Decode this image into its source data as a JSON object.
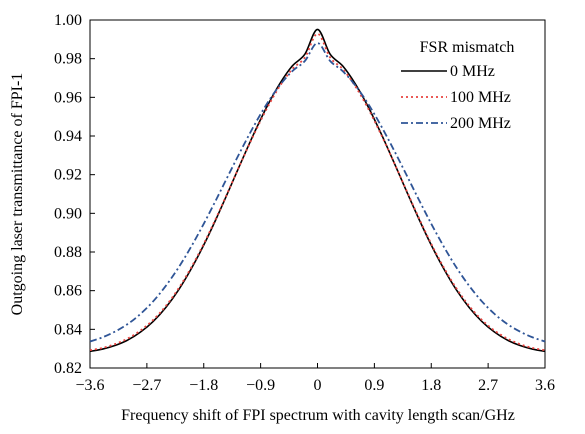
{
  "chart_data": {
    "type": "line",
    "title": "",
    "xlabel": "Frequency shift of FPI spectrum with cavity length scan/GHz",
    "ylabel": "Outgoing laser transmittance of FPI-1",
    "xlim": [
      -3.6,
      3.6
    ],
    "ylim": [
      0.82,
      1.0
    ],
    "x_ticks": [
      -3.6,
      -2.7,
      -1.8,
      -0.9,
      0,
      0.9,
      1.8,
      2.7,
      3.6
    ],
    "x_tick_labels": [
      "−3.6",
      "−2.7",
      "−1.8",
      "−0.9",
      "0",
      "0.9",
      "1.8",
      "2.7",
      "3.6"
    ],
    "y_ticks": [
      0.82,
      0.84,
      0.86,
      0.88,
      0.9,
      0.92,
      0.94,
      0.96,
      0.98,
      1.0
    ],
    "y_tick_labels": [
      "0.82",
      "0.84",
      "0.86",
      "0.88",
      "0.90",
      "0.92",
      "0.94",
      "0.96",
      "0.98",
      "1.00"
    ],
    "grid": false,
    "legend": {
      "title": "FSR mismatch",
      "placement": "top-right"
    },
    "x": [
      -3.6,
      -3.4,
      -3.2,
      -3.0,
      -2.8,
      -2.6,
      -2.4,
      -2.2,
      -2.0,
      -1.8,
      -1.6,
      -1.4,
      -1.2,
      -1.0,
      -0.8,
      -0.6,
      -0.4,
      -0.2,
      0.0,
      0.2,
      0.4,
      0.6,
      0.8,
      1.0,
      1.2,
      1.4,
      1.6,
      1.8,
      2.0,
      2.2,
      2.4,
      2.6,
      2.8,
      3.0,
      3.2,
      3.4,
      3.6
    ],
    "series": [
      {
        "name": "0 MHz",
        "color": "#000000",
        "dash": "solid",
        "values": [
          0.8286,
          0.8298,
          0.8317,
          0.8345,
          0.8386,
          0.8441,
          0.8513,
          0.8603,
          0.8712,
          0.8836,
          0.8974,
          0.9121,
          0.9271,
          0.9417,
          0.9552,
          0.9669,
          0.9762,
          0.9823,
          0.9951,
          0.9823,
          0.9762,
          0.9669,
          0.9552,
          0.9417,
          0.9271,
          0.9121,
          0.8974,
          0.8836,
          0.8712,
          0.8603,
          0.8513,
          0.8441,
          0.8386,
          0.8345,
          0.8317,
          0.8298,
          0.8286
        ]
      },
      {
        "name": "100 MHz",
        "color": "#e8433f",
        "dash": "dotted",
        "values": [
          0.8292,
          0.8304,
          0.8324,
          0.8353,
          0.8394,
          0.8449,
          0.8521,
          0.8611,
          0.8719,
          0.8842,
          0.8979,
          0.9124,
          0.927,
          0.9412,
          0.9543,
          0.9656,
          0.9746,
          0.9806,
          0.9929,
          0.9806,
          0.9746,
          0.9656,
          0.9543,
          0.9412,
          0.927,
          0.9124,
          0.8979,
          0.8842,
          0.8719,
          0.8611,
          0.8521,
          0.8449,
          0.8394,
          0.8353,
          0.8324,
          0.8304,
          0.8292
        ]
      },
      {
        "name": "200 MHz",
        "color": "#2f5597",
        "dash": "dash-dot",
        "values": [
          0.8337,
          0.8359,
          0.8389,
          0.8428,
          0.848,
          0.8545,
          0.8625,
          0.8719,
          0.8827,
          0.8946,
          0.9073,
          0.9204,
          0.9333,
          0.9456,
          0.9567,
          0.9661,
          0.9735,
          0.9788,
          0.9881,
          0.9788,
          0.9735,
          0.9661,
          0.9567,
          0.9456,
          0.9333,
          0.9204,
          0.9073,
          0.8946,
          0.8827,
          0.8719,
          0.8625,
          0.8545,
          0.848,
          0.8428,
          0.8389,
          0.8359,
          0.8337
        ]
      }
    ]
  }
}
